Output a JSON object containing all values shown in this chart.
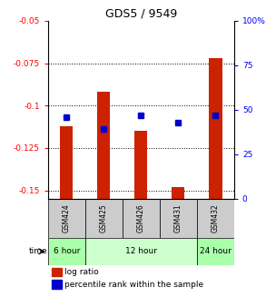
{
  "title": "GDS5 / 9549",
  "samples": [
    "GSM424",
    "GSM425",
    "GSM426",
    "GSM431",
    "GSM432"
  ],
  "log_ratio": [
    -0.112,
    -0.092,
    -0.115,
    -0.148,
    -0.072
  ],
  "percentile_rank": [
    46,
    39,
    47,
    43,
    47
  ],
  "ylim_left": [
    -0.155,
    -0.05
  ],
  "ylim_right": [
    0,
    100
  ],
  "yticks_left": [
    -0.15,
    -0.125,
    -0.1,
    -0.075,
    -0.05
  ],
  "yticks_right": [
    0,
    25,
    50,
    75,
    100
  ],
  "ytick_labels_left": [
    "-0.15",
    "-0.125",
    "-0.1",
    "-0.075",
    "-0.05"
  ],
  "ytick_labels_right": [
    "0",
    "25",
    "50",
    "75",
    "100%"
  ],
  "time_groups": [
    {
      "label": "6 hour",
      "cols": [
        0
      ],
      "color": "#aaffaa"
    },
    {
      "label": "12 hour",
      "cols": [
        1,
        2,
        3
      ],
      "color": "#ccffcc"
    },
    {
      "label": "24 hour",
      "cols": [
        4
      ],
      "color": "#aaffaa"
    }
  ],
  "bar_color": "#cc2200",
  "dot_color": "#0000cc",
  "label_log_ratio": "log ratio",
  "label_percentile": "percentile rank within the sample",
  "bar_width": 0.35
}
